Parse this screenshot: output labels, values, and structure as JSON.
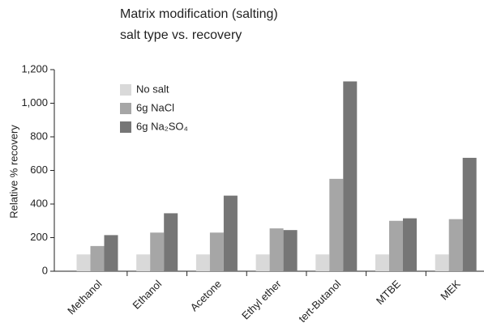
{
  "chart_data": {
    "type": "bar",
    "title": "Matrix modification (salting)",
    "subtitle": "salt type vs. recovery",
    "y_label": "Relative % recovery",
    "categories": [
      "Methanol",
      "Ethanol",
      "Acetone",
      "Ethyl ether",
      "tert-Butanol",
      "MTBE",
      "MEK"
    ],
    "series": [
      {
        "name": "No salt",
        "color": "#d9d9d9",
        "values": [
          100,
          100,
          100,
          100,
          100,
          100,
          100
        ]
      },
      {
        "name": "6g NaCl",
        "color": "#a6a6a6",
        "values": [
          150,
          230,
          230,
          255,
          550,
          300,
          310
        ]
      },
      {
        "name": "6g Na₂SO₄",
        "color": "#767676",
        "values": [
          215,
          345,
          450,
          245,
          1130,
          315,
          675
        ]
      }
    ],
    "ylim": [
      0,
      1200
    ],
    "yticks": [
      0,
      200,
      400,
      600,
      800,
      {
        "value": 1000,
        "label": "1,000"
      },
      {
        "value": 1200,
        "label": "1,200"
      }
    ],
    "legend": "upper-left"
  }
}
